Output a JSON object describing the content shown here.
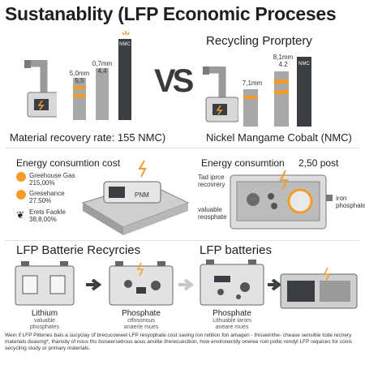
{
  "title": "Sustanablity (LFP Economic Proceses",
  "vs_label": "VS",
  "left_panel": {
    "bar_labels": [
      "5,0mm\n5,5",
      "0,7mm\n4,4"
    ],
    "bar_badge": "NMC",
    "caption": "Material recovery rate: 155 NMC)"
  },
  "right_panel": {
    "heading": "Recycling Prorptery",
    "bar_labels": [
      "7,1mm",
      "8,1mm\n4.2"
    ],
    "bar_badge": "NMC",
    "caption": "Nickel Mangame Cobalt (NMC)"
  },
  "energy_left": {
    "heading": "Energy consumtion cost",
    "legend": [
      {
        "label": "Greehouse Gas",
        "value": "215,00%",
        "color": "#f39c2a"
      },
      {
        "label": "Gresehance",
        "value": "27,50%",
        "color": "#f39c2a"
      },
      {
        "label": "Erets Faokle",
        "value": "38,8,00%",
        "color": "#3b3f44"
      }
    ],
    "device_label": "PNM"
  },
  "energy_right": {
    "heading": "Energy consumtion",
    "value": "2,50 post",
    "callout_top": "Tad iprce\nrecovrery",
    "callout_bottom": "valuable\nreosphate",
    "callout_right": "iron\nphosphate"
  },
  "process_left": {
    "heading": "LFP Batterie Recyrcies",
    "steps": [
      {
        "label": "Lithium",
        "sub": "valuable\nphosphates"
      },
      {
        "label": "Phosphate",
        "sub": "ctfosonous\nanaerie mues"
      }
    ]
  },
  "process_right": {
    "heading": "LFP batteries",
    "steps": [
      {
        "label": "Phosphate",
        "sub": "Lithuable larom\naneare mues"
      }
    ]
  },
  "footer_text": "Wein if LFP Pitteries bais a sucyclay of brecucowwel LFP resyophate cost saving ron retition fon amagen - thisueinthe- chease sensible tode recnery materials duasmg*, thansity of nous ths bsiseersetrous aous anolite ifrerecuecition, how environentily oneree rcet poltic rendyl LFP requices for conis secycling study or primary materials.",
  "colors": {
    "accent": "#f39c2a",
    "dark": "#3b3f44",
    "gray": "#a8a8a8"
  }
}
